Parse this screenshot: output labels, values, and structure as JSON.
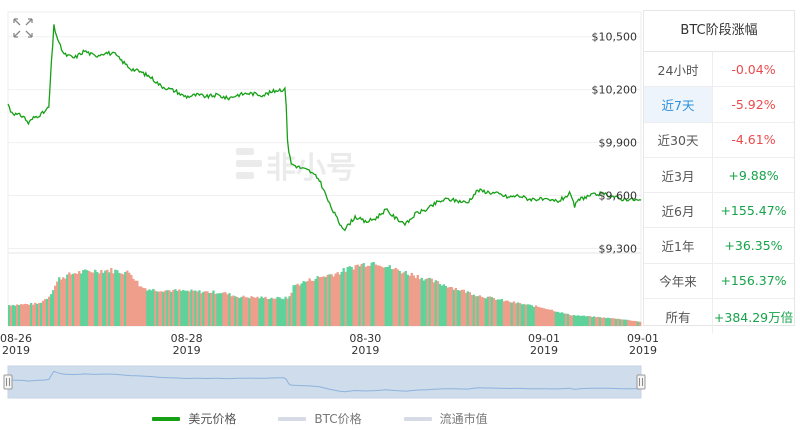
{
  "chart_data": {
    "type": "line",
    "price_series": {
      "name": "美元价格",
      "color": "#16a016",
      "points": [
        [
          0,
          10120
        ],
        [
          0.05,
          10080
        ],
        [
          0.15,
          10060
        ],
        [
          0.3,
          10050
        ],
        [
          0.4,
          10010
        ],
        [
          0.5,
          10040
        ],
        [
          0.7,
          10070
        ],
        [
          0.8,
          10100
        ],
        [
          0.85,
          10350
        ],
        [
          0.9,
          10560
        ],
        [
          1.0,
          10460
        ],
        [
          1.1,
          10400
        ],
        [
          1.3,
          10380
        ],
        [
          1.5,
          10420
        ],
        [
          1.7,
          10390
        ],
        [
          1.9,
          10410
        ],
        [
          2.1,
          10400
        ],
        [
          2.2,
          10370
        ],
        [
          2.4,
          10320
        ],
        [
          2.6,
          10300
        ],
        [
          2.8,
          10270
        ],
        [
          3.0,
          10220
        ],
        [
          3.2,
          10200
        ],
        [
          3.3,
          10190
        ],
        [
          3.4,
          10170
        ],
        [
          3.5,
          10160
        ],
        [
          3.7,
          10170
        ],
        [
          3.9,
          10160
        ],
        [
          4.1,
          10170
        ],
        [
          4.3,
          10150
        ],
        [
          4.5,
          10170
        ],
        [
          4.7,
          10180
        ],
        [
          5.0,
          10170
        ],
        [
          5.3,
          10200
        ],
        [
          5.44,
          10200
        ],
        [
          5.48,
          9880
        ],
        [
          5.55,
          9780
        ],
        [
          5.7,
          9760
        ],
        [
          5.9,
          9740
        ],
        [
          6.1,
          9690
        ],
        [
          6.3,
          9550
        ],
        [
          6.5,
          9440
        ],
        [
          6.6,
          9410
        ],
        [
          6.8,
          9480
        ],
        [
          7.0,
          9450
        ],
        [
          7.2,
          9470
        ],
        [
          7.4,
          9520
        ],
        [
          7.6,
          9470
        ],
        [
          7.8,
          9440
        ],
        [
          8.0,
          9500
        ],
        [
          8.2,
          9520
        ],
        [
          8.4,
          9560
        ],
        [
          8.6,
          9580
        ],
        [
          8.8,
          9570
        ],
        [
          9.0,
          9560
        ],
        [
          9.2,
          9630
        ],
        [
          9.4,
          9620
        ],
        [
          9.6,
          9610
        ],
        [
          9.8,
          9590
        ],
        [
          10.0,
          9600
        ],
        [
          10.2,
          9580
        ],
        [
          10.4,
          9580
        ],
        [
          10.6,
          9570
        ],
        [
          10.8,
          9570
        ],
        [
          11.0,
          9610
        ],
        [
          11.1,
          9540
        ],
        [
          11.2,
          9580
        ],
        [
          11.4,
          9600
        ],
        [
          11.6,
          9610
        ],
        [
          11.8,
          9600
        ],
        [
          12.0,
          9580
        ],
        [
          12.2,
          9580
        ],
        [
          12.4,
          9570
        ]
      ]
    },
    "y_ticks": [
      "$10,500",
      "$10,200",
      "$9,900",
      "$9,600",
      "$9,300"
    ],
    "y_tick_values": [
      10500,
      10200,
      9900,
      9600,
      9300
    ],
    "ylim": [
      9280,
      10640
    ],
    "x_ticks": [
      {
        "x": 0,
        "date": "08-26",
        "year": "2019"
      },
      {
        "x": 3.5,
        "date": "08-28",
        "year": "2019"
      },
      {
        "x": 7.0,
        "date": "08-30",
        "year": "2019"
      },
      {
        "x": 10.5,
        "date": "09-01",
        "year": "2019"
      },
      {
        "x": 12.4,
        "date": "09-01",
        "year": "2019"
      }
    ],
    "xlim": [
      0,
      12.4
    ],
    "volume_colors": {
      "up": "#5fd29a",
      "down": "#ee9e8a"
    },
    "volume_profile": [
      [
        0,
        0.3
      ],
      [
        0.6,
        0.32
      ],
      [
        0.8,
        0.42
      ],
      [
        1.0,
        0.68
      ],
      [
        1.3,
        0.76
      ],
      [
        1.7,
        0.79
      ],
      [
        2.0,
        0.8
      ],
      [
        2.4,
        0.76
      ],
      [
        2.6,
        0.56
      ],
      [
        2.8,
        0.52
      ],
      [
        3.5,
        0.5
      ],
      [
        4.2,
        0.48
      ],
      [
        4.5,
        0.42
      ],
      [
        5.2,
        0.4
      ],
      [
        5.5,
        0.4
      ],
      [
        5.6,
        0.58
      ],
      [
        6.0,
        0.68
      ],
      [
        6.5,
        0.77
      ],
      [
        6.8,
        0.86
      ],
      [
        7.2,
        0.92
      ],
      [
        7.5,
        0.83
      ],
      [
        8.0,
        0.72
      ],
      [
        8.5,
        0.6
      ],
      [
        9.2,
        0.44
      ],
      [
        9.8,
        0.35
      ],
      [
        10.5,
        0.26
      ],
      [
        11.0,
        0.16
      ],
      [
        12.0,
        0.1
      ],
      [
        12.4,
        0.06
      ]
    ]
  },
  "table": {
    "title": "BTC阶段涨幅",
    "rows": [
      {
        "period": "24小时",
        "change": "-0.04%",
        "dir": "down",
        "active": false
      },
      {
        "period": "近7天",
        "change": "-5.92%",
        "dir": "down",
        "active": true
      },
      {
        "period": "近30天",
        "change": "-4.61%",
        "dir": "down",
        "active": false
      },
      {
        "period": "近3月",
        "change": "+9.88%",
        "dir": "up",
        "active": false
      },
      {
        "period": "近6月",
        "change": "+155.47%",
        "dir": "up",
        "active": false
      },
      {
        "period": "近1年",
        "change": "+36.35%",
        "dir": "up",
        "active": false
      },
      {
        "period": "今年来",
        "change": "+156.37%",
        "dir": "up",
        "active": false
      },
      {
        "period": "所有",
        "change": "+384.29万倍",
        "dir": "up",
        "active": false
      }
    ]
  },
  "watermark": "非小号",
  "legend": [
    {
      "label": "美元价格",
      "color": "#16a016",
      "active": true
    },
    {
      "label": "BTC价格",
      "color": "#d6dbe6",
      "active": false
    },
    {
      "label": "流通市值",
      "color": "#d6dbe6",
      "active": false
    }
  ],
  "expand_icon": "expand-arrows-icon",
  "navigator": {
    "fill": "#cfdcec",
    "line": "#8db3dc"
  }
}
